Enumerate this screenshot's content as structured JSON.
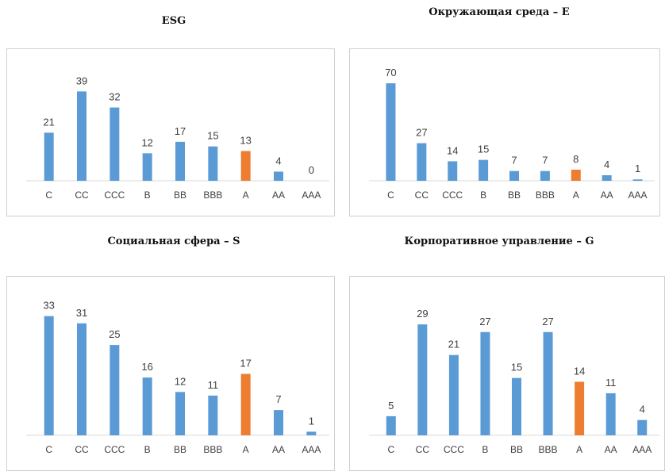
{
  "colors": {
    "bar": "#5b9bd5",
    "highlight": "#ed7d31",
    "axis": "#d9d9d9",
    "panel_border": "#d0d0d0"
  },
  "chart_data": [
    {
      "type": "bar",
      "title": "ESG",
      "categories": [
        "C",
        "CC",
        "CCC",
        "B",
        "BB",
        "BBB",
        "A",
        "AA",
        "AAA"
      ],
      "values": [
        21,
        39,
        32,
        12,
        17,
        15,
        13,
        4,
        0
      ],
      "highlight_category": "A",
      "data_labels": true,
      "grid": false
    },
    {
      "type": "bar",
      "title": "Окружающая среда – E",
      "categories": [
        "C",
        "CC",
        "CCC",
        "B",
        "BB",
        "BBB",
        "A",
        "AA",
        "AAA"
      ],
      "values": [
        70,
        27,
        14,
        15,
        7,
        7,
        8,
        4,
        1
      ],
      "highlight_category": "A",
      "data_labels": true,
      "grid": false
    },
    {
      "type": "bar",
      "title": "Социальная сфера – S",
      "categories": [
        "C",
        "CC",
        "CCC",
        "B",
        "BB",
        "BBB",
        "A",
        "AA",
        "AAA"
      ],
      "values": [
        33,
        31,
        25,
        16,
        12,
        11,
        17,
        7,
        1
      ],
      "highlight_category": "A",
      "data_labels": true,
      "grid": false
    },
    {
      "type": "bar",
      "title": "Корпоративное управление – G",
      "categories": [
        "C",
        "CC",
        "CCC",
        "B",
        "BB",
        "BBB",
        "A",
        "AA",
        "AAA"
      ],
      "values": [
        5,
        29,
        21,
        27,
        15,
        27,
        14,
        11,
        4
      ],
      "highlight_category": "A",
      "data_labels": true,
      "grid": false
    }
  ]
}
